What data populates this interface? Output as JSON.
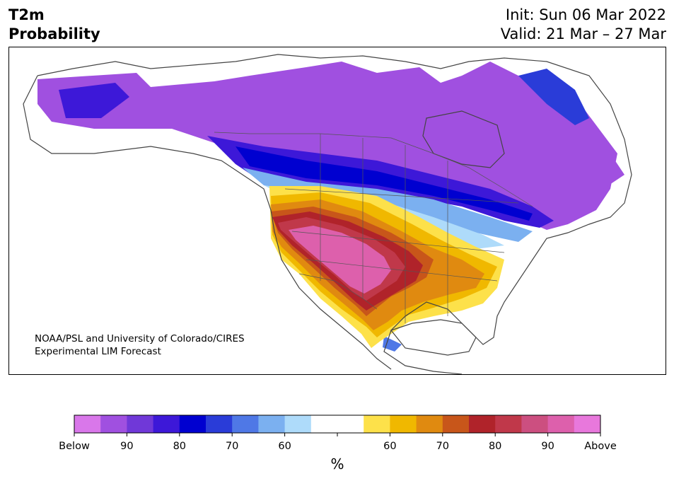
{
  "header": {
    "title_line1": "T2m",
    "title_line2": "Probability",
    "init_text": "Init: Sun 06 Mar 2022",
    "valid_text": "Valid: 21 Mar – 27 Mar"
  },
  "credit": {
    "line1": "NOAA/PSL and University of Colorado/CIRES",
    "line2": "Experimental LIM Forecast"
  },
  "colorbar": {
    "unit": "%",
    "colors": [
      "#d977ea",
      "#a050e0",
      "#7038d8",
      "#3d18d8",
      "#0000d0",
      "#2a3cd8",
      "#4f78e6",
      "#7bb0f0",
      "#aedbfa",
      "#ffffff",
      "#ffffff",
      "#fde14a",
      "#f0b800",
      "#e08a10",
      "#c8561a",
      "#b0232a",
      "#c0384a",
      "#cc4f80",
      "#dd60ac",
      "#e878dc"
    ],
    "tick_labels": [
      "Below",
      "90",
      "80",
      "70",
      "60",
      "",
      "60",
      "70",
      "80",
      "90",
      "Above"
    ]
  },
  "map_colors": {
    "land_outline": "#444444",
    "state_lines": "#555555"
  }
}
